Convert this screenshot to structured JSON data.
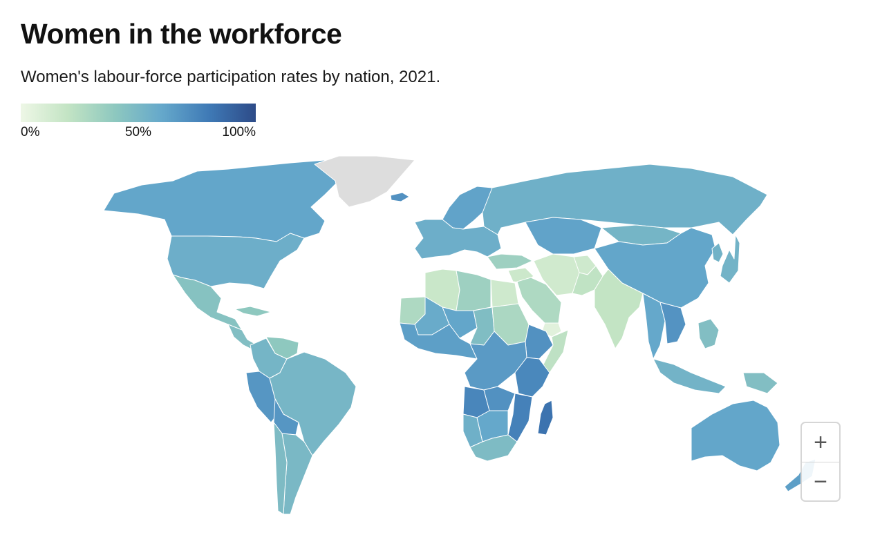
{
  "title": "Women in the workforce",
  "subtitle": "Women's labour-force participation rates by nation, 2021.",
  "legend": {
    "ticks": [
      "0%",
      "50%",
      "100%"
    ],
    "gradient": [
      "#eef7e6",
      "#c3e4c4",
      "#8ec8bf",
      "#65a8cb",
      "#3f7ab6",
      "#2d4b88"
    ]
  },
  "colors": {
    "nodata": "#dddddd",
    "border": "#ffffff",
    "ocean": "#ffffff"
  },
  "regions": [
    {
      "name": "Canada",
      "value": 61
    },
    {
      "name": "United States",
      "value": 56
    },
    {
      "name": "Mexico",
      "value": 44
    },
    {
      "name": "Central America",
      "value": 46
    },
    {
      "name": "Cuba",
      "value": 40
    },
    {
      "name": "Venezuela",
      "value": 40
    },
    {
      "name": "Colombia",
      "value": 52
    },
    {
      "name": "Peru",
      "value": 68
    },
    {
      "name": "Brazil",
      "value": 51
    },
    {
      "name": "Bolivia",
      "value": 68
    },
    {
      "name": "Argentina",
      "value": 50
    },
    {
      "name": "Chile",
      "value": 48
    },
    {
      "name": "Greenland",
      "value": null
    },
    {
      "name": "Iceland",
      "value": 70
    },
    {
      "name": "Scandinavia",
      "value": 62
    },
    {
      "name": "Western Europe",
      "value": 56
    },
    {
      "name": "Russia",
      "value": 55
    },
    {
      "name": "Kazakhstan",
      "value": 62
    },
    {
      "name": "Mongolia",
      "value": 52
    },
    {
      "name": "China",
      "value": 61
    },
    {
      "name": "Korea",
      "value": 54
    },
    {
      "name": "Japan",
      "value": 53
    },
    {
      "name": "Turkey",
      "value": 34
    },
    {
      "name": "Middle East",
      "value": 16
    },
    {
      "name": "Saudi Arabia",
      "value": 28
    },
    {
      "name": "Yemen",
      "value": 6
    },
    {
      "name": "Iran",
      "value": 14
    },
    {
      "name": "Afghanistan",
      "value": 15
    },
    {
      "name": "Pakistan",
      "value": 21
    },
    {
      "name": "India",
      "value": 20
    },
    {
      "name": "Southeast Asia",
      "value": 60
    },
    {
      "name": "Vietnam",
      "value": 69
    },
    {
      "name": "Indonesia",
      "value": 53
    },
    {
      "name": "Philippines",
      "value": 46
    },
    {
      "name": "Papua New Guinea",
      "value": 46
    },
    {
      "name": "Australia",
      "value": 61
    },
    {
      "name": "New Zealand",
      "value": 64
    },
    {
      "name": "Algeria",
      "value": 17
    },
    {
      "name": "Libya",
      "value": 34
    },
    {
      "name": "Egypt",
      "value": 15
    },
    {
      "name": "Mauritania",
      "value": 28
    },
    {
      "name": "Mali",
      "value": 58
    },
    {
      "name": "Niger",
      "value": 61
    },
    {
      "name": "Chad",
      "value": 47
    },
    {
      "name": "Sudan",
      "value": 29
    },
    {
      "name": "West Africa",
      "value": 64
    },
    {
      "name": "Ethiopia",
      "value": 70
    },
    {
      "name": "Somalia",
      "value": 22
    },
    {
      "name": "Central Africa",
      "value": 66
    },
    {
      "name": "East Africa",
      "value": 74
    },
    {
      "name": "Angola",
      "value": 75
    },
    {
      "name": "Zambia",
      "value": 70
    },
    {
      "name": "Mozambique",
      "value": 77
    },
    {
      "name": "Namibia",
      "value": 55
    },
    {
      "name": "Botswana",
      "value": 60
    },
    {
      "name": "South Africa",
      "value": 48
    },
    {
      "name": "Madagascar",
      "value": 83
    }
  ]
}
